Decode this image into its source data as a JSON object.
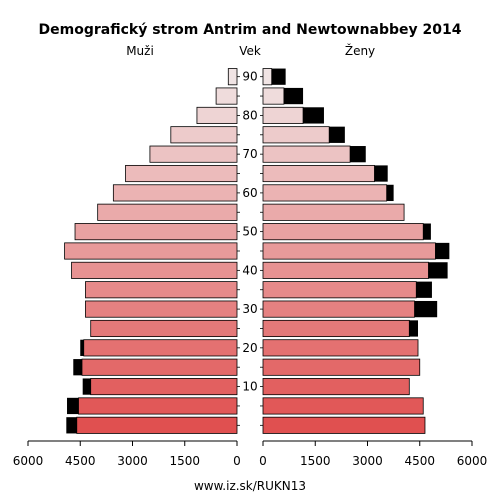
{
  "chart_data": {
    "type": "bar",
    "title": "Demografický strom Antrim and Newtownabbey 2014",
    "left_label": "Muži",
    "center_label": "Vek",
    "right_label": "Ženy",
    "footer": "www.iz.sk/RUKN13",
    "xlim": [
      0,
      6000
    ],
    "x_ticks": [
      0,
      1500,
      3000,
      4500,
      6000
    ],
    "x_tick_labels": [
      "0",
      "1500",
      "3000",
      "4500",
      "6000"
    ],
    "age_tick_labels": [
      "10",
      "20",
      "30",
      "40",
      "50",
      "60",
      "70",
      "80",
      "90"
    ],
    "age_groups": [
      "0-4",
      "5-9",
      "10-14",
      "15-19",
      "20-24",
      "25-29",
      "30-34",
      "35-39",
      "40-44",
      "45-49",
      "50-54",
      "55-59",
      "60-64",
      "65-69",
      "70-74",
      "75-79",
      "80-84",
      "85-89",
      "90+"
    ],
    "series": [
      {
        "name": "Muži",
        "values": [
          4600,
          4550,
          4200,
          4450,
          4400,
          4200,
          4350,
          4350,
          4750,
          4950,
          4650,
          4000,
          3550,
          3200,
          2500,
          1900,
          1150,
          600,
          250
        ],
        "excess": [
          300,
          330,
          230,
          250,
          100,
          0,
          0,
          0,
          0,
          0,
          0,
          0,
          0,
          0,
          0,
          0,
          0,
          0,
          0
        ]
      },
      {
        "name": "Ženy",
        "values": [
          4650,
          4600,
          4200,
          4500,
          4450,
          4200,
          4350,
          4400,
          4750,
          4950,
          4600,
          4050,
          3550,
          3200,
          2500,
          1900,
          1150,
          600,
          250
        ],
        "excess": [
          0,
          0,
          0,
          0,
          0,
          250,
          650,
          450,
          550,
          400,
          220,
          0,
          200,
          380,
          450,
          450,
          600,
          550,
          400
        ]
      }
    ],
    "colors": {
      "excess": "#000000",
      "outline": "#000000",
      "young": "#e05050",
      "old": "#f0e4e4"
    }
  }
}
